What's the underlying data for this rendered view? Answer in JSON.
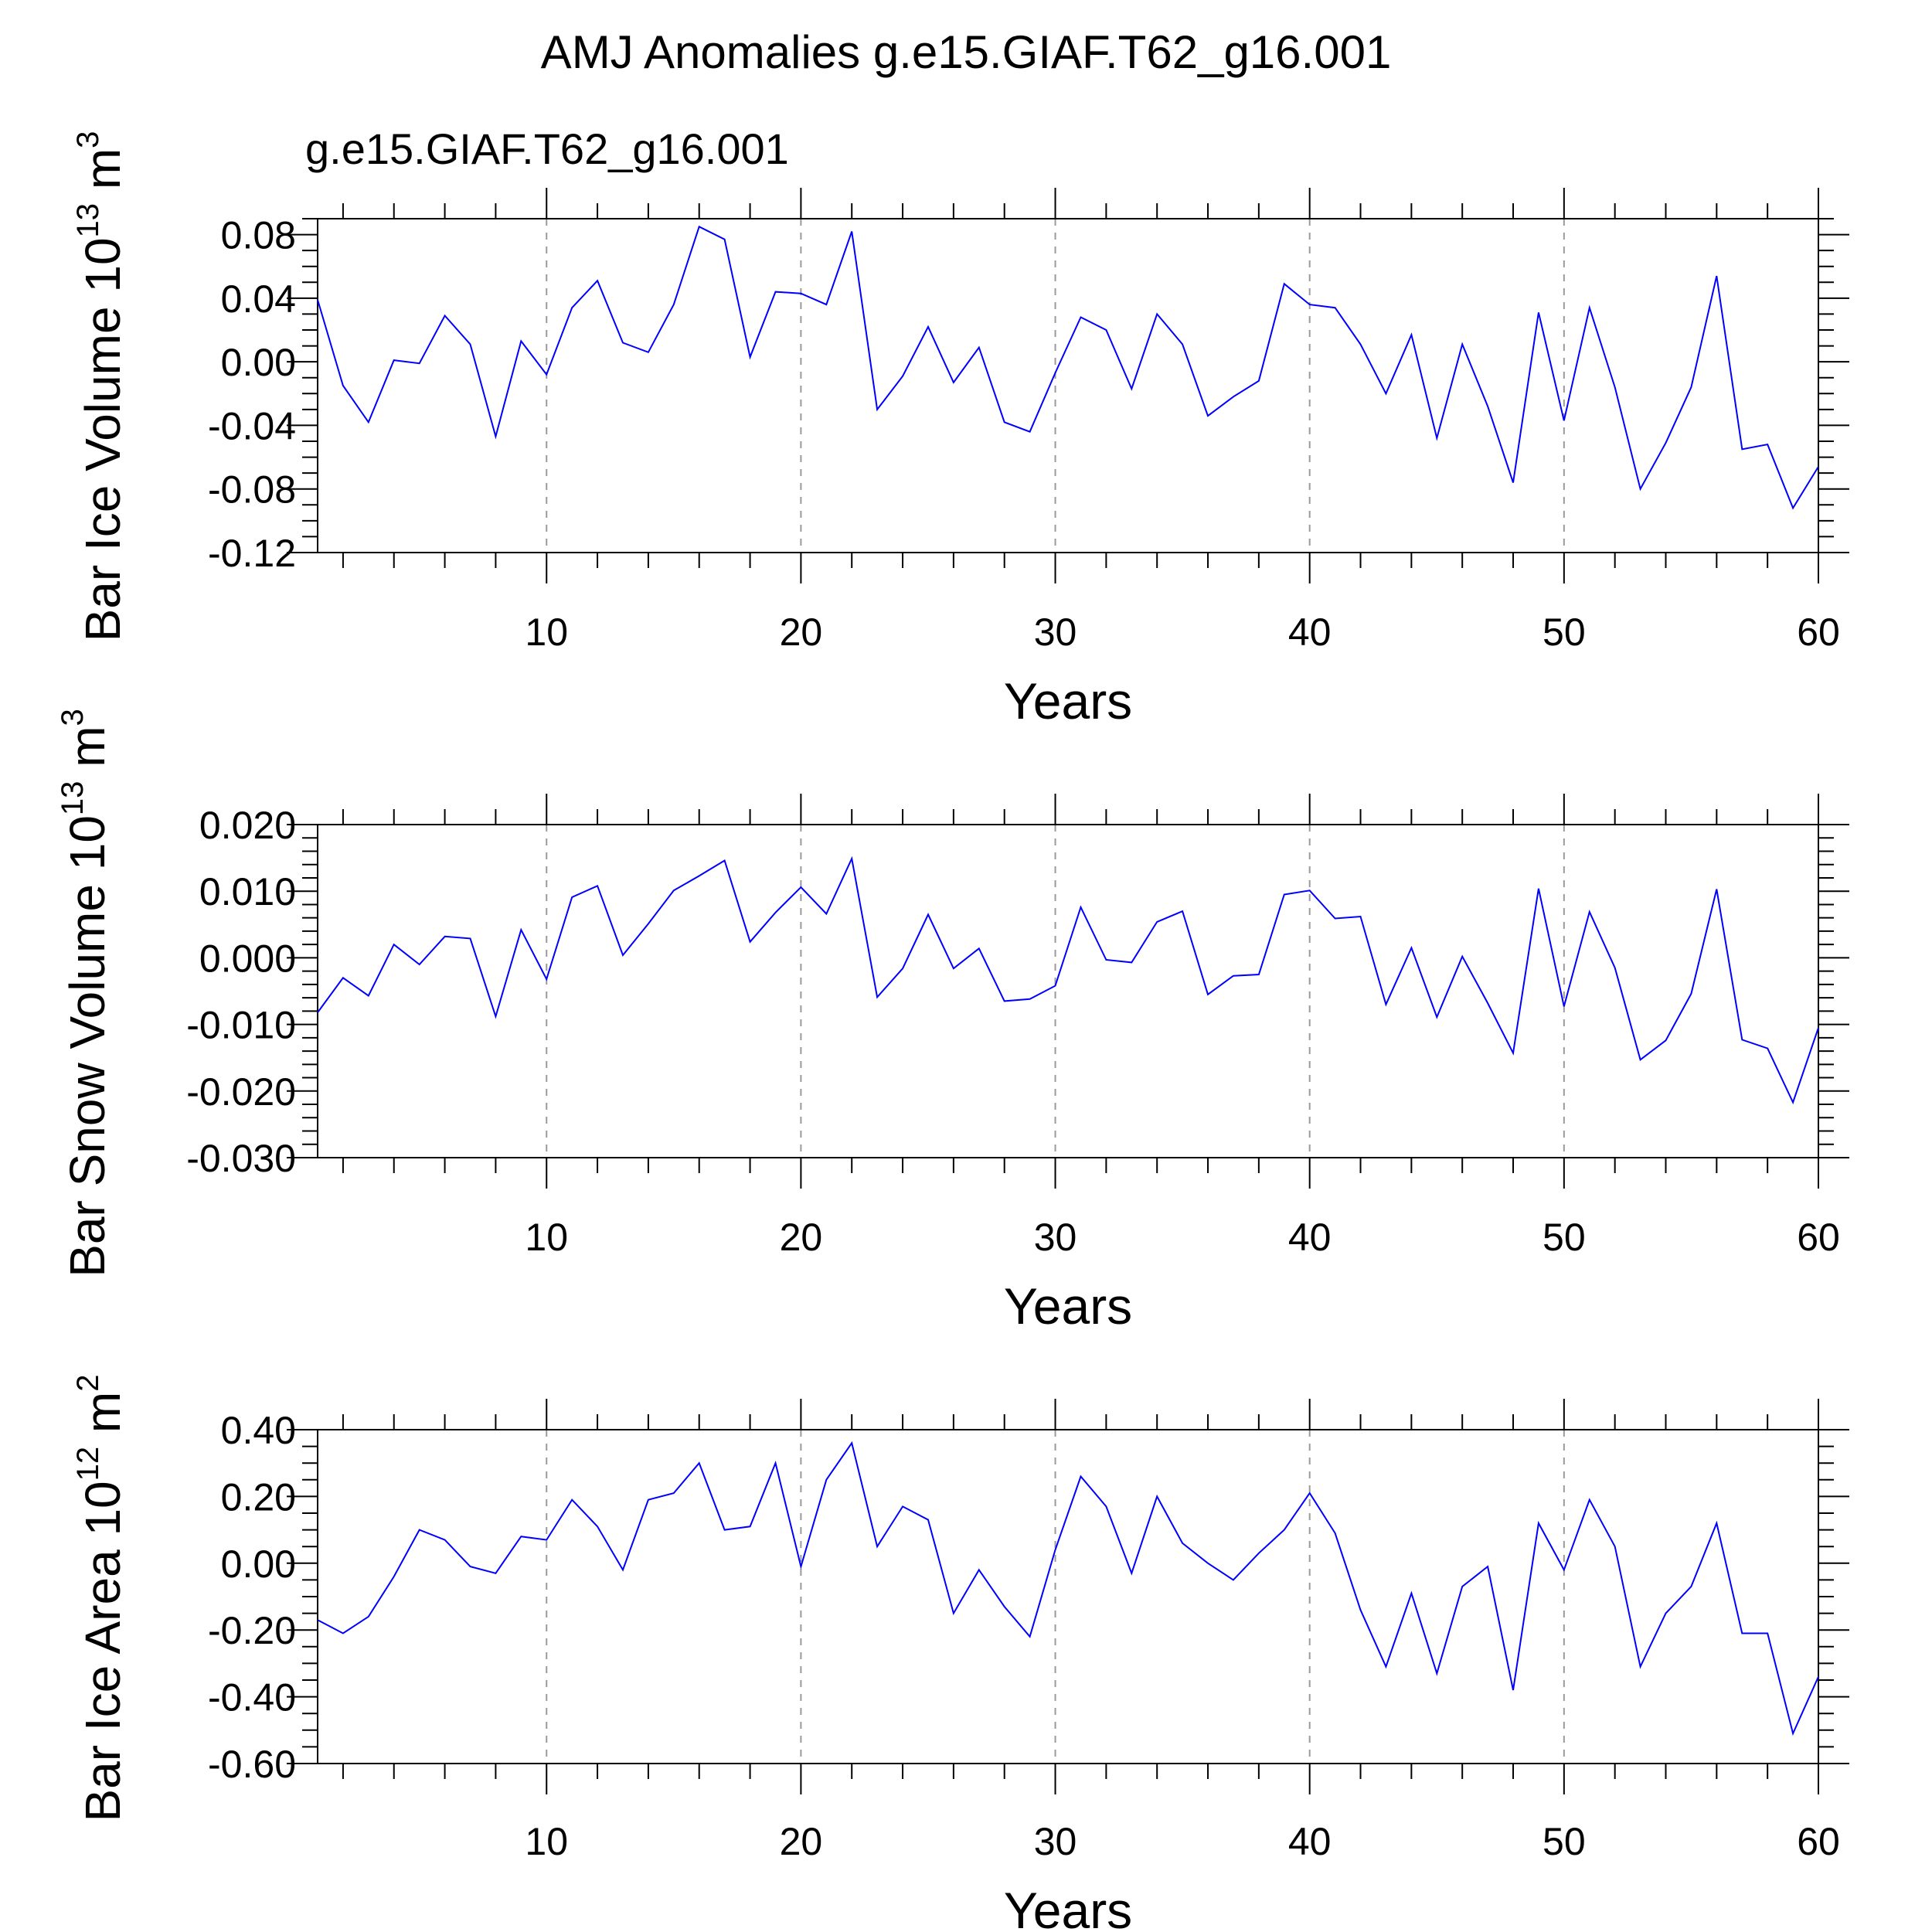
{
  "figure": {
    "title": "AMJ Anomalies g.e15.GIAF.T62_g16.001",
    "subtitle": "g.e15.GIAF.T62_g16.001",
    "line_color": "#0000ff"
  },
  "chart_data": [
    {
      "type": "line",
      "ylabel": "Bar Ice Volume",
      "yunit": {
        "base": "10",
        "exp": "13",
        "unit": "m",
        "unit_exp": "3"
      },
      "xlabel": "Years",
      "xlim": [
        1,
        60
      ],
      "ylim": [
        -0.12,
        0.09
      ],
      "xticks": [
        10,
        20,
        30,
        40,
        50,
        60
      ],
      "yticks": [
        {
          "v": -0.12,
          "t": "-0.12"
        },
        {
          "v": -0.08,
          "t": "-0.08"
        },
        {
          "v": -0.04,
          "t": "-0.04"
        },
        {
          "v": 0.0,
          "t": "0.00"
        },
        {
          "v": 0.04,
          "t": "0.04"
        },
        {
          "v": 0.08,
          "t": "0.08"
        }
      ],
      "ymajor": 0.04,
      "yminor": 0.01,
      "grid_x": [
        10,
        20,
        30,
        40,
        50
      ],
      "series": [
        {
          "x": [
            1,
            2,
            3,
            4,
            5,
            6,
            7,
            8,
            9,
            10,
            11,
            12,
            13,
            14,
            15,
            16,
            17,
            18,
            19,
            20,
            21,
            22,
            23,
            24,
            25,
            26,
            27,
            28,
            29,
            30,
            31,
            32,
            33,
            34,
            35,
            36,
            37,
            38,
            39,
            40,
            41,
            42,
            43,
            44,
            45,
            46,
            47,
            48,
            49,
            50,
            51,
            52,
            53,
            54,
            55,
            56,
            57,
            58,
            59,
            60
          ],
          "y": [
            0.039,
            -0.015,
            -0.038,
            0.001,
            -0.001,
            0.029,
            0.011,
            -0.047,
            0.013,
            -0.008,
            0.034,
            0.051,
            0.012,
            0.006,
            0.036,
            0.085,
            0.077,
            0.003,
            0.044,
            0.043,
            0.036,
            0.082,
            -0.03,
            -0.009,
            0.022,
            -0.013,
            0.009,
            -0.038,
            -0.044,
            -0.007,
            0.028,
            0.02,
            -0.017,
            0.03,
            0.011,
            -0.034,
            -0.022,
            -0.012,
            0.049,
            0.036,
            0.034,
            0.011,
            -0.02,
            0.017,
            -0.048,
            0.011,
            -0.028,
            -0.076,
            0.031,
            -0.037,
            0.034,
            -0.016,
            -0.08,
            -0.051,
            -0.016,
            0.054,
            -0.055,
            -0.052,
            -0.092,
            -0.066
          ]
        }
      ]
    },
    {
      "type": "line",
      "ylabel": "Bar Snow Volume",
      "yunit": {
        "base": "10",
        "exp": "13",
        "unit": "m",
        "unit_exp": "3"
      },
      "xlabel": "Years",
      "xlim": [
        1,
        60
      ],
      "ylim": [
        -0.03,
        0.02
      ],
      "xticks": [
        10,
        20,
        30,
        40,
        50,
        60
      ],
      "yticks": [
        {
          "v": -0.03,
          "t": "-0.030"
        },
        {
          "v": -0.02,
          "t": "-0.020"
        },
        {
          "v": -0.01,
          "t": "-0.010"
        },
        {
          "v": 0.0,
          "t": "0.000"
        },
        {
          "v": 0.01,
          "t": "0.010"
        },
        {
          "v": 0.02,
          "t": "0.020"
        }
      ],
      "ymajor": 0.01,
      "yminor": 0.002,
      "grid_x": [
        10,
        20,
        30,
        40,
        50
      ],
      "series": [
        {
          "x": [
            1,
            2,
            3,
            4,
            5,
            6,
            7,
            8,
            9,
            10,
            11,
            12,
            13,
            14,
            15,
            16,
            17,
            18,
            19,
            20,
            21,
            22,
            23,
            24,
            25,
            26,
            27,
            28,
            29,
            30,
            31,
            32,
            33,
            34,
            35,
            36,
            37,
            38,
            39,
            40,
            41,
            42,
            43,
            44,
            45,
            46,
            47,
            48,
            49,
            50,
            51,
            52,
            53,
            54,
            55,
            56,
            57,
            58,
            59,
            60
          ],
          "y": [
            -0.0082,
            -0.003,
            -0.0057,
            0.002,
            -0.001,
            0.0032,
            0.0029,
            -0.0088,
            0.0042,
            -0.0032,
            0.0091,
            0.0108,
            0.0004,
            0.0051,
            0.0101,
            0.0123,
            0.0146,
            0.0024,
            0.0068,
            0.0106,
            0.0066,
            0.0149,
            -0.0059,
            -0.0016,
            0.0065,
            -0.0016,
            0.0014,
            -0.0065,
            -0.0062,
            -0.0042,
            0.0076,
            -0.0003,
            -0.0007,
            0.0054,
            0.007,
            -0.0055,
            -0.0027,
            -0.0025,
            0.0095,
            0.0101,
            0.0059,
            0.0062,
            -0.007,
            0.0015,
            -0.0089,
            0.0002,
            -0.0068,
            -0.0143,
            0.0104,
            -0.0073,
            0.0069,
            -0.0015,
            -0.0153,
            -0.0124,
            -0.0054,
            0.0103,
            -0.0123,
            -0.0136,
            -0.0217,
            -0.0105
          ]
        }
      ]
    },
    {
      "type": "line",
      "ylabel": "Bar Ice Area",
      "yunit": {
        "base": "10",
        "exp": "12",
        "unit": "m",
        "unit_exp": "2"
      },
      "xlabel": "Years",
      "xlim": [
        1,
        60
      ],
      "ylim": [
        -0.6,
        0.4
      ],
      "xticks": [
        10,
        20,
        30,
        40,
        50,
        60
      ],
      "yticks": [
        {
          "v": -0.6,
          "t": "-0.60"
        },
        {
          "v": -0.4,
          "t": "-0.40"
        },
        {
          "v": -0.2,
          "t": "-0.20"
        },
        {
          "v": 0.0,
          "t": "0.00"
        },
        {
          "v": 0.2,
          "t": "0.20"
        },
        {
          "v": 0.4,
          "t": "0.40"
        }
      ],
      "ymajor": 0.2,
      "yminor": 0.05,
      "grid_x": [
        10,
        20,
        30,
        40,
        50
      ],
      "series": [
        {
          "x": [
            1,
            2,
            3,
            4,
            5,
            6,
            7,
            8,
            9,
            10,
            11,
            12,
            13,
            14,
            15,
            16,
            17,
            18,
            19,
            20,
            21,
            22,
            23,
            24,
            25,
            26,
            27,
            28,
            29,
            30,
            31,
            32,
            33,
            34,
            35,
            36,
            37,
            38,
            39,
            40,
            41,
            42,
            43,
            44,
            45,
            46,
            47,
            48,
            49,
            50,
            51,
            52,
            53,
            54,
            55,
            56,
            57,
            58,
            59,
            60
          ],
          "y": [
            -0.17,
            -0.21,
            -0.16,
            -0.04,
            0.1,
            0.07,
            -0.01,
            -0.03,
            0.08,
            0.07,
            0.19,
            0.11,
            -0.02,
            0.19,
            0.21,
            0.3,
            0.1,
            0.11,
            0.3,
            -0.01,
            0.25,
            0.36,
            0.05,
            0.17,
            0.13,
            -0.15,
            -0.02,
            -0.13,
            -0.22,
            0.04,
            0.26,
            0.17,
            -0.03,
            0.2,
            0.06,
            0.0,
            -0.05,
            0.03,
            0.1,
            0.21,
            0.09,
            -0.14,
            -0.31,
            -0.09,
            -0.33,
            -0.07,
            -0.01,
            -0.38,
            0.12,
            -0.02,
            0.19,
            0.05,
            -0.31,
            -0.15,
            -0.07,
            0.12,
            -0.21,
            -0.21,
            -0.51,
            -0.34
          ]
        }
      ]
    }
  ]
}
